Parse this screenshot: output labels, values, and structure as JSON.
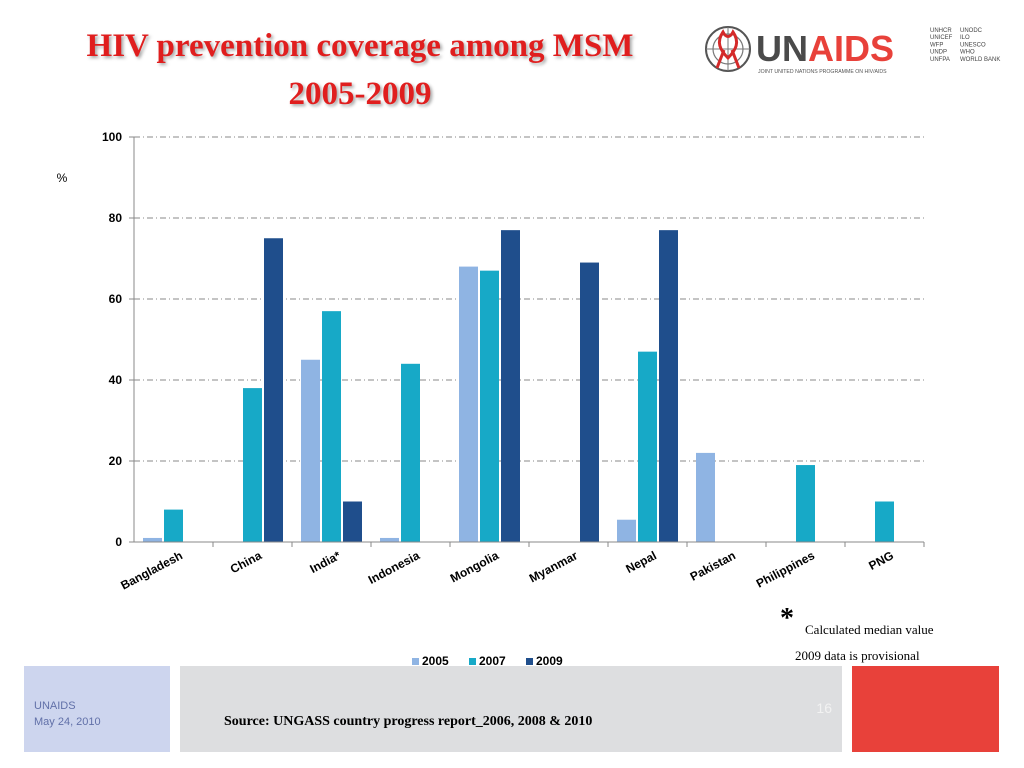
{
  "header": {
    "title_line1": "HIV prevention coverage among  MSM",
    "title_line2": "2005-2009"
  },
  "logo": {
    "name": "UNAIDS",
    "subtitle": "JOINT UNITED NATIONS PROGRAMME ON HIV/AIDS",
    "cosponsors_col1": [
      "UNHCR",
      "UNICEF",
      "WFP",
      "UNDP",
      "UNFPA"
    ],
    "cosponsors_col2": [
      "UNODC",
      "ILO",
      "UNESCO",
      "WHO",
      "WORLD BANK"
    ],
    "colors": {
      "text": "#4a4a4a",
      "accent": "#e8413a"
    }
  },
  "chart_data": {
    "type": "bar",
    "categories": [
      "Bangladesh",
      "China",
      "India*",
      "Indonesia",
      "Mongolia",
      "Myanmar",
      "Nepal",
      "Pakistan",
      "Philippines",
      "PNG"
    ],
    "series": [
      {
        "name": "2005",
        "color": "#8fb4e3",
        "values": [
          1,
          null,
          45,
          1,
          68,
          null,
          5.5,
          22,
          null,
          null
        ]
      },
      {
        "name": "2007",
        "color": "#17a9c7",
        "values": [
          8,
          38,
          57,
          44,
          67,
          null,
          47,
          null,
          19,
          10
        ]
      },
      {
        "name": "2009",
        "color": "#1f4e8c",
        "values": [
          null,
          75,
          10,
          null,
          77,
          69,
          77,
          null,
          null,
          null
        ]
      }
    ],
    "ylabel": "%",
    "ylim": [
      0,
      100
    ],
    "yticks": [
      0,
      20,
      40,
      60,
      80,
      100
    ],
    "grid": true,
    "legend": "bottom"
  },
  "footnotes": {
    "star": "*",
    "median": "Calculated median value",
    "provisional": "2009 data is provisional"
  },
  "footer": {
    "org": "UNAIDS",
    "date": "May 24, 2010",
    "source": "Source: UNGASS country progress report_2006, 2008 & 2010",
    "page": "16"
  }
}
